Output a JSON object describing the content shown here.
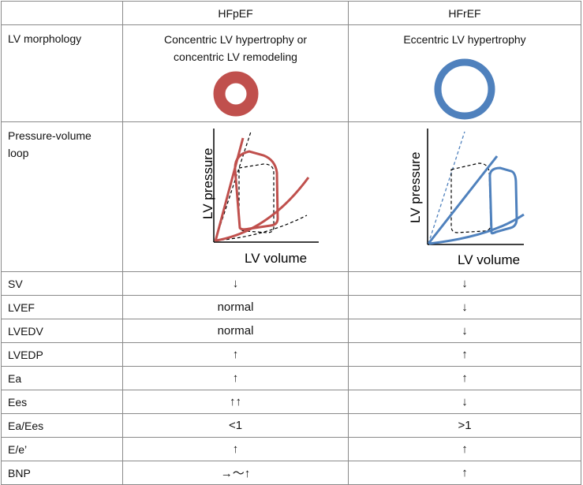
{
  "columns": {
    "blank": "",
    "hfpef": "HFpEF",
    "hfref": "HFrEF"
  },
  "morphology": {
    "label": "LV morphology",
    "hfpef_text": [
      "Concentric LV hypertrophy or",
      "concentric LV remodeling"
    ],
    "hfref_text": [
      "Eccentric LV hypertrophy"
    ],
    "hfpef_color": "#c0504d",
    "hfref_color": "#4f81bd"
  },
  "pv_loop": {
    "label_line1": "Pressure-volume",
    "label_line2": "loop",
    "ylabel": "LV pressure",
    "xlabel": "LV volume"
  },
  "rows": [
    {
      "label": "SV",
      "hfpef": "↓",
      "hfref": "↓"
    },
    {
      "label": "LVEF",
      "hfpef": "normal",
      "hfref": "↓"
    },
    {
      "label": "LVEDV",
      "hfpef": "normal",
      "hfref": "↓"
    },
    {
      "label": "LVEDP",
      "hfpef": "↑",
      "hfref": "↑"
    },
    {
      "label": "Ea",
      "hfpef": "↑",
      "hfref": "↑"
    },
    {
      "label": "Ees",
      "hfpef": "↑↑",
      "hfref": "↓"
    },
    {
      "label": "Ea/Ees",
      "hfpef": "<1",
      "hfref": ">1"
    },
    {
      "label": "E/e’",
      "hfpef": "↑",
      "hfref": "↑"
    },
    {
      "label": "BNP",
      "hfpef": "→〜↑",
      "hfref": "↑"
    }
  ]
}
